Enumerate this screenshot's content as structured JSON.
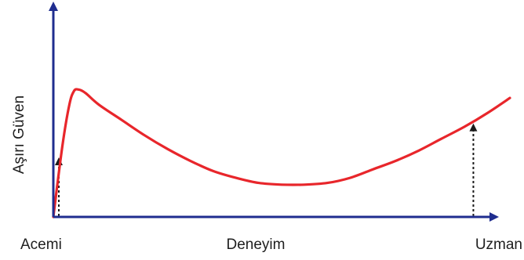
{
  "chart_data": {
    "type": "line",
    "title": "",
    "xlabel": "Deneyim",
    "ylabel": "Aşırı Güven",
    "x_tick_labels": [
      "Acemi",
      "Uzman"
    ],
    "xlim": [
      0,
      1
    ],
    "ylim": [
      0,
      1
    ],
    "grid": false,
    "legend": "none",
    "series": [
      {
        "color": "#e8262b",
        "x": [
          0.0,
          0.02,
          0.035,
          0.045,
          0.055,
          0.07,
          0.1,
          0.15,
          0.2,
          0.25,
          0.3,
          0.35,
          0.4,
          0.45,
          0.5,
          0.55,
          0.6,
          0.65,
          0.7,
          0.75,
          0.8,
          0.85,
          0.9,
          0.95,
          1.0
        ],
        "y": [
          0.0,
          0.42,
          0.66,
          0.74,
          0.75,
          0.73,
          0.66,
          0.57,
          0.48,
          0.4,
          0.33,
          0.27,
          0.23,
          0.2,
          0.19,
          0.19,
          0.2,
          0.23,
          0.28,
          0.33,
          0.39,
          0.46,
          0.53,
          0.61,
          0.7
        ]
      }
    ],
    "markers": [
      {
        "label": "Acemi",
        "x": 0.012,
        "y": 0.35
      },
      {
        "label": "Uzman",
        "x": 0.92,
        "y": 0.55
      }
    ],
    "colors": {
      "axis": "#1f2d8f",
      "curve": "#e8262b",
      "marker": "#1a1a1a",
      "text": "#1e1e1e"
    }
  }
}
